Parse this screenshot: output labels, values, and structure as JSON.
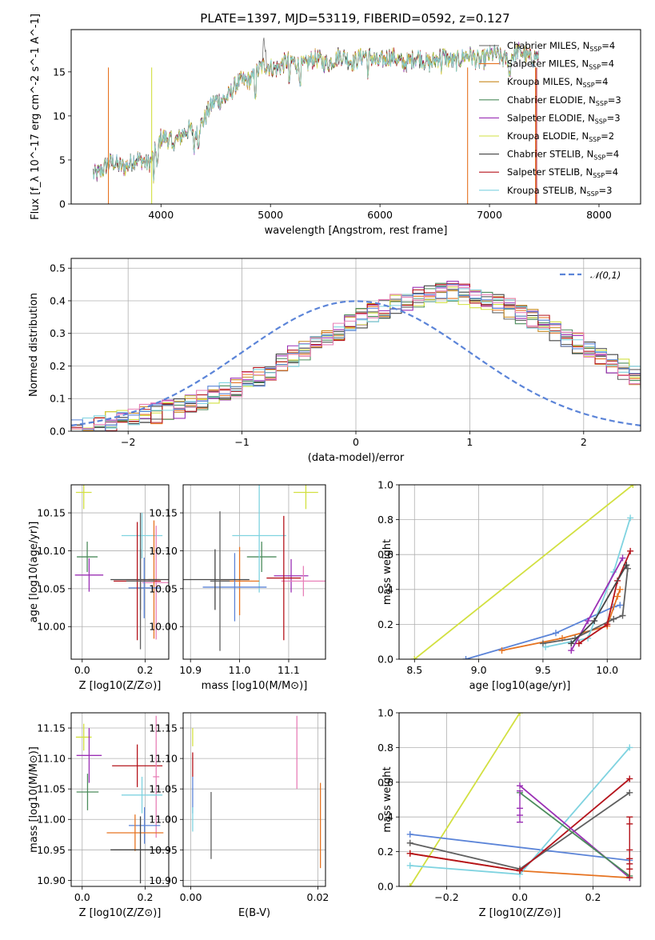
{
  "title": "PLATE=1397, MJD=53119, FIBERID=0592, z=0.127",
  "colors": {
    "chabrier_miles": "#606060",
    "salpeter_miles": "#e67321",
    "kroupa_miles": "#c8891e",
    "chabrier_elodie": "#4c8c5c",
    "salpeter_elodie": "#9b30b5",
    "kroupa_elodie": "#d2e040",
    "chabrier_stelib": "#444444",
    "salpeter_stelib": "#b5141c",
    "kroupa_stelib": "#7fd3e0",
    "blue": "#5b84d8",
    "pink": "#e880b8"
  },
  "chart_data": [
    {
      "id": "spectrum",
      "type": "line",
      "title": "PLATE=1397, MJD=53119, FIBERID=0592, z=0.127",
      "xlabel": "wavelength [Angstrom, rest frame]",
      "ylabel": "Flux [f_λ 10^-17 erg cm^-2 s^-1 A^-1]",
      "xlim": [
        3180,
        8380
      ],
      "ylim": [
        0,
        19.8
      ],
      "xticks": [
        "4000",
        "5000",
        "6000",
        "7000",
        "8000"
      ],
      "yticks": [
        "0",
        "5",
        "10",
        "15"
      ],
      "legend_position": "top-right",
      "legend": [
        "Chabrier MILES, N_SSP=4",
        "Salpeter MILES, N_SSP=4",
        "Kroupa MILES, N_SSP=4",
        "Chabrier ELODIE, N_SSP=3",
        "Salpeter ELODIE, N_SSP=3",
        "Kroupa ELODIE, N_SSP=2",
        "Chabrier STELIB, N_SSP=4",
        "Salpeter STELIB, N_SSP=4",
        "Kroupa STELIB, N_SSP=3"
      ],
      "continuum": [
        [
          3380,
          3.5
        ],
        [
          3500,
          4.3
        ],
        [
          3700,
          4.6
        ],
        [
          3900,
          5.0
        ],
        [
          4000,
          7.2
        ],
        [
          4150,
          7.6
        ],
        [
          4300,
          8.3
        ],
        [
          4500,
          11.5
        ],
        [
          4700,
          13.4
        ],
        [
          4900,
          15.2
        ],
        [
          5100,
          15.9
        ],
        [
          5300,
          16.0
        ],
        [
          5500,
          16.3
        ],
        [
          5700,
          16.5
        ],
        [
          5900,
          16.6
        ],
        [
          6100,
          16.4
        ],
        [
          6300,
          16.3
        ],
        [
          6500,
          16.4
        ],
        [
          6700,
          16.5
        ],
        [
          6900,
          16.6
        ],
        [
          7100,
          16.7
        ],
        [
          7300,
          17.0
        ],
        [
          7450,
          16.8
        ]
      ]
    },
    {
      "id": "residuals",
      "type": "histogram",
      "xlabel": "(data-model)/error",
      "ylabel": "Normed distribution",
      "xlim": [
        -2.5,
        2.5
      ],
      "ylim": [
        0,
        0.53
      ],
      "xticks": [
        "−2",
        "−1",
        "0",
        "1",
        "2"
      ],
      "yticks": [
        "0.0",
        "0.1",
        "0.2",
        "0.3",
        "0.4",
        "0.5"
      ],
      "legend": [
        "𝒩(0,1)"
      ],
      "legend_position": "top-right",
      "bin_width": 0.1,
      "bin_start": -2.5,
      "profiles": [
        [
          0.01,
          0.014,
          0.02,
          0.03,
          0.035,
          0.045,
          0.05,
          0.055,
          0.065,
          0.07,
          0.08,
          0.095,
          0.11,
          0.12,
          0.135,
          0.15,
          0.17,
          0.185,
          0.21,
          0.23,
          0.25,
          0.27,
          0.29,
          0.31,
          0.33,
          0.345,
          0.36,
          0.375,
          0.39,
          0.4,
          0.41,
          0.42,
          0.425,
          0.43,
          0.42,
          0.41,
          0.4,
          0.39,
          0.375,
          0.36,
          0.345,
          0.33,
          0.31,
          0.29,
          0.27,
          0.25,
          0.23,
          0.21,
          0.19,
          0.17,
          0.15,
          0.135,
          0.12,
          0.105,
          0.09,
          0.08,
          0.07,
          0.06,
          0.05,
          0.04,
          0.03,
          0.02,
          0.015,
          0.01
        ]
      ],
      "normal": {
        "mean": 0,
        "std": 1
      }
    },
    {
      "id": "age_vs_Z",
      "type": "errorbar",
      "xlabel": "Z [log10(Z/Z⊙)]",
      "ylabel": "age  [log10(age/yr)]",
      "xlim": [
        -0.035,
        0.275
      ],
      "ylim": [
        9.957,
        10.187
      ],
      "xticks": [
        "0.0",
        "0.2"
      ],
      "yticks": [
        "10.00",
        "10.05",
        "10.10",
        "10.15"
      ],
      "points": [
        {
          "x": 0.005,
          "y": 10.177,
          "xerr": 0.025,
          "yerr": 0.022,
          "c": "kroupa_elodie"
        },
        {
          "x": 0.016,
          "y": 10.092,
          "xerr": 0.033,
          "yerr": 0.02,
          "c": "chabrier_elodie"
        },
        {
          "x": 0.022,
          "y": 10.068,
          "xerr": 0.045,
          "yerr": 0.022,
          "c": "salpeter_elodie"
        },
        {
          "x": 0.19,
          "y": 10.12,
          "xerr": 0.065,
          "yerr": 0.03,
          "c": "kroupa_stelib"
        },
        {
          "x": 0.235,
          "y": 10.058,
          "xerr": 0.045,
          "yerr": 0.075,
          "c": "pink"
        },
        {
          "x": 0.228,
          "y": 10.062,
          "xerr": 0.018,
          "yerr": 0.078,
          "c": "salpeter_miles"
        },
        {
          "x": 0.197,
          "y": 10.051,
          "xerr": 0.05,
          "yerr": 0.04,
          "c": "blue"
        },
        {
          "x": 0.185,
          "y": 10.062,
          "xerr": 0.095,
          "yerr": 0.04,
          "c": "chabrier_stelib"
        },
        {
          "x": 0.175,
          "y": 10.06,
          "xerr": 0.075,
          "yerr": 0.078,
          "c": "salpeter_stelib"
        },
        {
          "x": 0.185,
          "y": 10.06,
          "xerr": 0.045,
          "yerr": 0.09,
          "c": "chabrier_miles"
        }
      ]
    },
    {
      "id": "age_vs_mass",
      "type": "errorbar",
      "xlabel": "mass [log10(M/M⊙)]",
      "ylabel": "",
      "xlim": [
        10.885,
        11.175
      ],
      "ylim": [
        9.957,
        10.187
      ],
      "xticks": [
        "10.9",
        "11.0",
        "11.1"
      ],
      "yticks": [
        "10.00",
        "10.05",
        "10.10",
        "10.15"
      ],
      "points": [
        {
          "x": 11.135,
          "y": 10.177,
          "xerr": 0.025,
          "yerr": 0.022,
          "c": "kroupa_elodie"
        },
        {
          "x": 11.045,
          "y": 10.092,
          "xerr": 0.03,
          "yerr": 0.02,
          "c": "chabrier_elodie"
        },
        {
          "x": 11.105,
          "y": 10.067,
          "xerr": 0.035,
          "yerr": 0.022,
          "c": "salpeter_elodie"
        },
        {
          "x": 11.04,
          "y": 10.12,
          "xerr": 0.055,
          "yerr": 0.075,
          "c": "kroupa_stelib"
        },
        {
          "x": 11.13,
          "y": 10.06,
          "xerr": 0.045,
          "yerr": 0.02,
          "c": "pink"
        },
        {
          "x": 11.0,
          "y": 10.06,
          "xerr": 0.04,
          "yerr": 0.045,
          "c": "salpeter_miles"
        },
        {
          "x": 10.99,
          "y": 10.052,
          "xerr": 0.065,
          "yerr": 0.045,
          "c": "blue"
        },
        {
          "x": 10.95,
          "y": 10.062,
          "xerr": 0.07,
          "yerr": 0.04,
          "c": "chabrier_stelib"
        },
        {
          "x": 11.09,
          "y": 10.064,
          "xerr": 0.035,
          "yerr": 0.082,
          "c": "salpeter_stelib"
        },
        {
          "x": 10.96,
          "y": 10.06,
          "xerr": 0.02,
          "yerr": 0.092,
          "c": "chabrier_miles"
        }
      ]
    },
    {
      "id": "massweight_vs_age",
      "type": "line",
      "xlabel": "age  [log10(age/yr)]",
      "ylabel": "mass weight",
      "xlim": [
        8.38,
        10.26
      ],
      "ylim": [
        0,
        1.0
      ],
      "xticks": [
        "8.5",
        "9.0",
        "9.5",
        "10.0"
      ],
      "yticks": [
        "0.0",
        "0.2",
        "0.4",
        "0.6",
        "0.8",
        "1.0"
      ],
      "series": [
        {
          "c": "kroupa_elodie",
          "points": [
            [
              8.5,
              0.0
            ],
            [
              10.2,
              1.0
            ]
          ]
        },
        {
          "c": "blue",
          "points": [
            [
              8.9,
              0.0
            ],
            [
              9.6,
              0.15
            ],
            [
              10.05,
              0.3
            ],
            [
              10.1,
              0.31
            ]
          ]
        },
        {
          "c": "salpeter_miles",
          "points": [
            [
              9.18,
              0.05
            ],
            [
              9.65,
              0.12
            ],
            [
              10.0,
              0.19
            ],
            [
              10.08,
              0.36
            ],
            [
              10.1,
              0.4
            ]
          ]
        },
        {
          "c": "chabrier_miles",
          "points": [
            [
              9.5,
              0.09
            ],
            [
              9.75,
              0.12
            ],
            [
              10.05,
              0.23
            ],
            [
              10.12,
              0.25
            ],
            [
              10.16,
              0.52
            ]
          ]
        },
        {
          "c": "kroupa_stelib",
          "points": [
            [
              9.52,
              0.07
            ],
            [
              9.85,
              0.12
            ],
            [
              10.05,
              0.5
            ],
            [
              10.18,
              0.81
            ]
          ]
        },
        {
          "c": "salpeter_stelib",
          "points": [
            [
              9.78,
              0.09
            ],
            [
              10.0,
              0.2
            ],
            [
              10.08,
              0.45
            ],
            [
              10.18,
              0.62
            ]
          ]
        },
        {
          "c": "salpeter_elodie",
          "points": [
            [
              9.72,
              0.05
            ],
            [
              9.85,
              0.22
            ],
            [
              10.12,
              0.58
            ]
          ]
        },
        {
          "c": "chabrier_stelib",
          "points": [
            [
              9.72,
              0.09
            ],
            [
              9.9,
              0.22
            ],
            [
              10.15,
              0.54
            ]
          ]
        }
      ]
    },
    {
      "id": "mass_vs_Z",
      "type": "errorbar",
      "xlabel": "Z [log10(Z/Z⊙)]",
      "ylabel": "mass [log10(M/M⊙)]",
      "xlim": [
        -0.035,
        0.275
      ],
      "ylim": [
        10.89,
        11.175
      ],
      "xticks": [
        "0.0",
        "0.2"
      ],
      "yticks": [
        "10.90",
        "10.95",
        "11.00",
        "11.05",
        "11.10",
        "11.15"
      ],
      "points": [
        {
          "x": 0.005,
          "y": 11.135,
          "xerr": 0.025,
          "yerr": 0.022,
          "c": "kroupa_elodie"
        },
        {
          "x": 0.022,
          "y": 11.105,
          "xerr": 0.04,
          "yerr": 0.045,
          "c": "salpeter_elodie"
        },
        {
          "x": 0.017,
          "y": 11.045,
          "xerr": 0.035,
          "yerr": 0.03,
          "c": "chabrier_elodie"
        },
        {
          "x": 0.175,
          "y": 11.088,
          "xerr": 0.08,
          "yerr": 0.035,
          "c": "salpeter_stelib"
        },
        {
          "x": 0.235,
          "y": 11.07,
          "xerr": 0.01,
          "yerr": 0.1,
          "c": "pink"
        },
        {
          "x": 0.19,
          "y": 11.04,
          "xerr": 0.065,
          "yerr": 0.03,
          "c": "kroupa_stelib"
        },
        {
          "x": 0.198,
          "y": 10.99,
          "xerr": 0.05,
          "yerr": 0.03,
          "c": "blue"
        },
        {
          "x": 0.168,
          "y": 10.978,
          "xerr": 0.09,
          "yerr": 0.03,
          "c": "salpeter_miles"
        },
        {
          "x": 0.185,
          "y": 10.95,
          "xerr": 0.095,
          "yerr": 0.055,
          "c": "chabrier_stelib"
        }
      ]
    },
    {
      "id": "mass_vs_ebv",
      "type": "errorbar",
      "xlabel": "E(B-V)",
      "ylabel": "",
      "xlim": [
        -0.0012,
        0.0212
      ],
      "ylim": [
        10.89,
        11.175
      ],
      "xticks": [
        "0.00",
        "0.02"
      ],
      "yticks": [
        "10.90",
        "10.95",
        "11.00",
        "11.05",
        "11.10",
        "11.15"
      ],
      "points": [
        {
          "x": 0.0003,
          "y": 11.135,
          "xerr": 0.0,
          "yerr": 0.015,
          "c": "kroupa_elodie"
        },
        {
          "x": 0.0003,
          "y": 11.09,
          "xerr": 0.0,
          "yerr": 0.02,
          "c": "salpeter_stelib"
        },
        {
          "x": 0.0003,
          "y": 11.04,
          "xerr": 0.0,
          "yerr": 0.03,
          "c": "blue"
        },
        {
          "x": 0.0003,
          "y": 11.0,
          "xerr": 0.0,
          "yerr": 0.02,
          "c": "kroupa_stelib"
        },
        {
          "x": 0.0032,
          "y": 10.99,
          "xerr": 0.0,
          "yerr": 0.055,
          "c": "chabrier_miles"
        },
        {
          "x": 0.0167,
          "y": 11.11,
          "xerr": 0.0,
          "yerr": 0.06,
          "c": "pink"
        },
        {
          "x": 0.0204,
          "y": 10.99,
          "xerr": 0.0,
          "yerr": 0.07,
          "c": "salpeter_miles"
        }
      ]
    },
    {
      "id": "massweight_vs_Z",
      "type": "line",
      "xlabel": "Z [log10(Z/Z⊙)]",
      "ylabel": "mass weight",
      "xlim": [
        -0.33,
        0.33
      ],
      "ylim": [
        0,
        1.0
      ],
      "xticks": [
        "−0.2",
        "0.0",
        "0.2"
      ],
      "yticks": [
        "0.0",
        "0.2",
        "0.4",
        "0.6",
        "0.8",
        "1.0"
      ],
      "series": [
        {
          "c": "kroupa_elodie",
          "points": [
            [
              -0.3,
              0.0
            ],
            [
              0.0,
              1.0
            ]
          ]
        },
        {
          "c": "blue",
          "points": [
            [
              -0.3,
              0.3
            ],
            [
              0.3,
              0.15
            ]
          ]
        },
        {
          "c": "salpeter_miles",
          "points": [
            [
              -0.3,
              0.19
            ],
            [
              0.0,
              0.09
            ],
            [
              0.3,
              0.05
            ]
          ]
        },
        {
          "c": "chabrier_miles",
          "points": [
            [
              -0.3,
              0.25
            ],
            [
              0.0,
              0.1
            ],
            [
              0.3,
              0.54
            ]
          ]
        },
        {
          "c": "kroupa_stelib",
          "points": [
            [
              -0.3,
              0.12
            ],
            [
              0.0,
              0.07
            ],
            [
              0.3,
              0.8
            ]
          ]
        },
        {
          "c": "salpeter_stelib",
          "points": [
            [
              -0.3,
              0.19
            ],
            [
              0.0,
              0.09
            ],
            [
              0.3,
              0.62
            ]
          ]
        },
        {
          "c": "salpeter_elodie",
          "points": [
            [
              0.0,
              0.58
            ],
            [
              0.3,
              0.05
            ]
          ]
        },
        {
          "c": "chabrier_elodie",
          "points": [
            [
              0.0,
              0.54
            ],
            [
              0.3,
              0.06
            ]
          ]
        }
      ],
      "markers_vertical": [
        {
          "x": 0.0,
          "ys": [
            0.41,
            0.37,
            0.45,
            0.55
          ],
          "c": "salpeter_elodie"
        },
        {
          "x": 0.3,
          "ys": [
            0.05,
            0.1,
            0.13,
            0.16,
            0.21,
            0.36,
            0.4
          ],
          "c": "salpeter_stelib"
        }
      ]
    }
  ]
}
